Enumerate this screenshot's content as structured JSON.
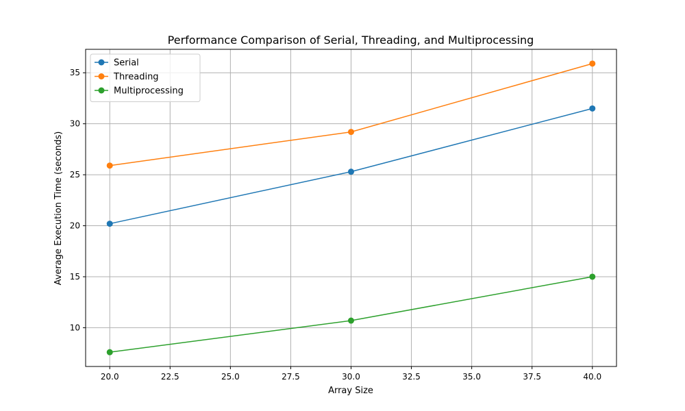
{
  "chart_data": {
    "type": "line",
    "title": "Performance Comparison of Serial, Threading, and Multiprocessing",
    "xlabel": "Array Size",
    "ylabel": "Average Execution Time (seconds)",
    "x": [
      20,
      30,
      40
    ],
    "xlim": [
      19,
      41
    ],
    "ylim": [
      6.2,
      37.3
    ],
    "xticks": [
      "20.0",
      "22.5",
      "25.0",
      "27.5",
      "30.0",
      "32.5",
      "35.0",
      "37.5",
      "40.0"
    ],
    "yticks": [
      "10",
      "15",
      "20",
      "25",
      "30",
      "35"
    ],
    "grid": true,
    "legend_position": "upper-left",
    "series": [
      {
        "name": "Serial",
        "values": [
          20.2,
          25.3,
          31.5
        ],
        "color": "#1f77b4"
      },
      {
        "name": "Threading",
        "values": [
          25.9,
          29.2,
          35.9
        ],
        "color": "#ff7f0e"
      },
      {
        "name": "Multiprocessing",
        "values": [
          7.6,
          10.7,
          15.0
        ],
        "color": "#2ca02c"
      }
    ]
  }
}
